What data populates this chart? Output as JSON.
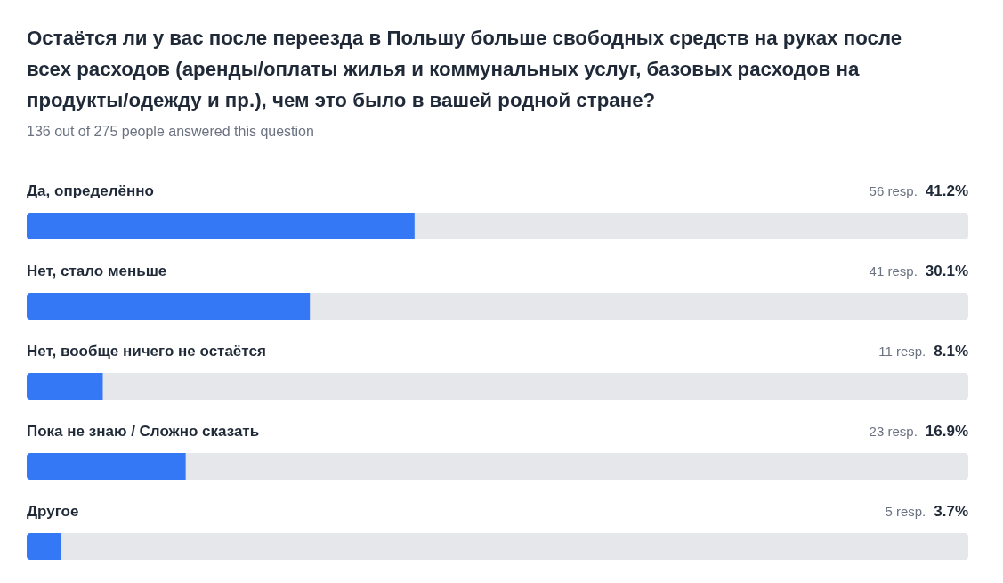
{
  "chart_data": {
    "type": "bar",
    "orientation": "horizontal",
    "title": "Остаётся ли у вас после переезда в Польшу больше свободных средств на руках после всех расходов (аренды/оплаты жилья и коммунальных услуг, базовых расходов на продукты/одежду и пр.), чем это было в вашей родной стране?",
    "subtitle": "136 out of 275 people answered this question",
    "categories": [
      "Да, определённо",
      "Нет, стало меньше",
      "Нет, вообще ничего не остаётся",
      "Пока не знаю / Сложно сказать",
      "Другое"
    ],
    "values": [
      41.2,
      30.1,
      8.1,
      16.9,
      3.7
    ],
    "value_labels": [
      "56 resp. 41.2%",
      "41 resp. 30.1%",
      "11 resp. 8.1%",
      "23 resp. 16.9%",
      "5 resp. 3.7%"
    ],
    "color": "#3478f6",
    "xlim": [
      0,
      100
    ]
  }
}
